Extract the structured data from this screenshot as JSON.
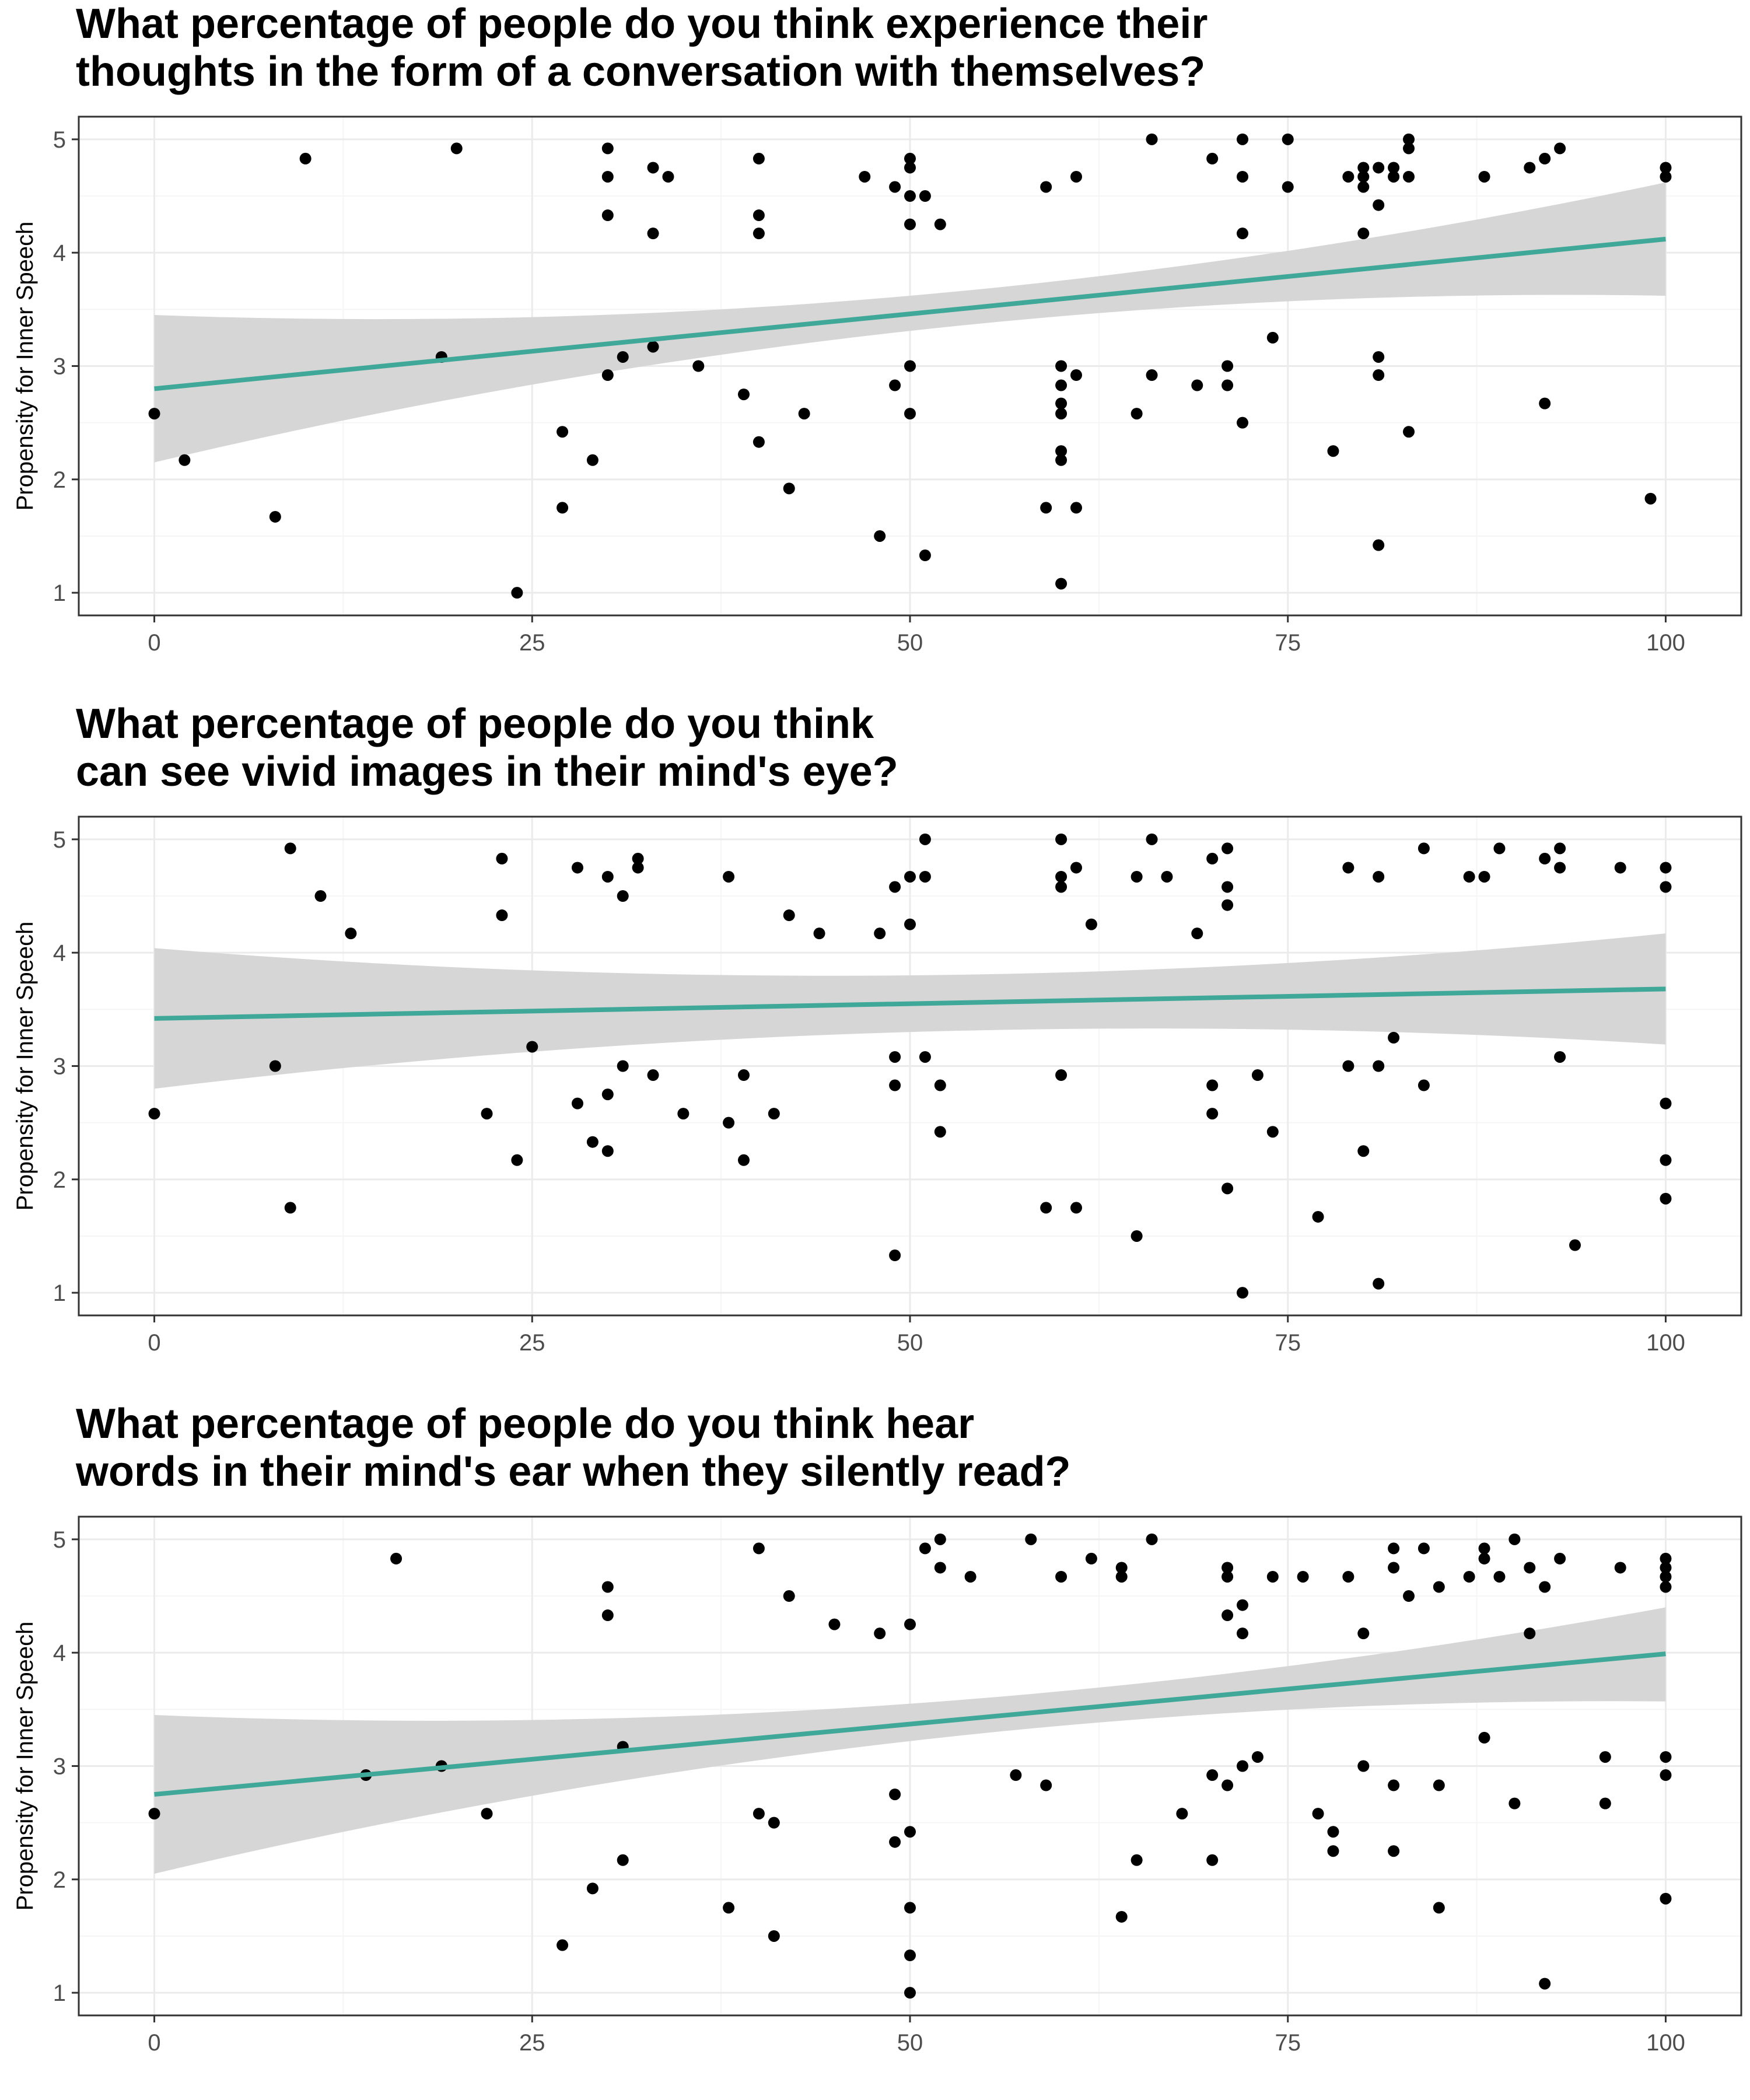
{
  "colors": {
    "background": "#ffffff",
    "grid_major": "#ebebeb",
    "grid_minor": "#f5f5f5",
    "panel_border": "#333333",
    "points": "#000000",
    "fit_line": "#3fa898",
    "ci_band": "#d6d6d6",
    "tick_text": "#4d4d4d"
  },
  "chart_data": [
    {
      "type": "scatter",
      "title_lines": [
        "What percentage of people do you think experience their",
        "thoughts in the form of a conversation with themselves?"
      ],
      "xlabel": "",
      "ylabel": "Propensity for Inner Speech",
      "xlim": [
        -5,
        105
      ],
      "ylim": [
        0.8,
        5.2
      ],
      "x_ticks": [
        0,
        25,
        50,
        75,
        100
      ],
      "y_ticks": [
        1,
        2,
        3,
        4,
        5
      ],
      "grid": true,
      "fit": {
        "method": "linear",
        "y_at_xmin": 2.8,
        "y_at_xmax": 4.12,
        "ci_lower": [
          2.15,
          3.62
        ],
        "ci_upper": [
          3.45,
          4.62
        ],
        "ci_mid": [
          3.31,
          3.62
        ]
      },
      "points": [
        [
          0,
          2.58
        ],
        [
          2,
          2.17
        ],
        [
          8,
          1.67
        ],
        [
          10,
          4.83
        ],
        [
          19,
          3.08
        ],
        [
          20,
          4.92
        ],
        [
          24,
          1.0
        ],
        [
          27,
          2.42
        ],
        [
          27,
          1.75
        ],
        [
          29,
          2.17
        ],
        [
          30,
          4.92
        ],
        [
          30,
          4.67
        ],
        [
          30,
          4.33
        ],
        [
          30,
          2.92
        ],
        [
          31,
          3.08
        ],
        [
          33,
          4.75
        ],
        [
          33,
          4.17
        ],
        [
          33,
          3.17
        ],
        [
          34,
          4.67
        ],
        [
          36,
          3.0
        ],
        [
          39,
          2.75
        ],
        [
          40,
          4.83
        ],
        [
          40,
          4.33
        ],
        [
          40,
          4.17
        ],
        [
          40,
          2.33
        ],
        [
          42,
          1.92
        ],
        [
          43,
          2.58
        ],
        [
          47,
          4.67
        ],
        [
          48,
          1.5
        ],
        [
          49,
          4.58
        ],
        [
          49,
          2.83
        ],
        [
          50,
          4.83
        ],
        [
          50,
          4.75
        ],
        [
          50,
          4.5
        ],
        [
          50,
          4.25
        ],
        [
          50,
          3.0
        ],
        [
          50,
          2.58
        ],
        [
          51,
          4.5
        ],
        [
          51,
          1.33
        ],
        [
          52,
          4.25
        ],
        [
          59,
          4.58
        ],
        [
          59,
          1.75
        ],
        [
          60,
          3.0
        ],
        [
          60,
          2.83
        ],
        [
          60,
          2.67
        ],
        [
          60,
          2.58
        ],
        [
          60,
          2.25
        ],
        [
          60,
          2.17
        ],
        [
          60,
          1.08
        ],
        [
          61,
          4.67
        ],
        [
          61,
          2.92
        ],
        [
          61,
          1.75
        ],
        [
          65,
          2.58
        ],
        [
          66,
          5.0
        ],
        [
          66,
          2.92
        ],
        [
          69,
          2.83
        ],
        [
          70,
          4.83
        ],
        [
          71,
          3.0
        ],
        [
          71,
          2.83
        ],
        [
          72,
          5.0
        ],
        [
          72,
          4.67
        ],
        [
          72,
          4.17
        ],
        [
          72,
          2.5
        ],
        [
          74,
          3.25
        ],
        [
          75,
          5.0
        ],
        [
          75,
          4.58
        ],
        [
          78,
          2.25
        ],
        [
          79,
          4.67
        ],
        [
          80,
          4.75
        ],
        [
          80,
          4.67
        ],
        [
          80,
          4.58
        ],
        [
          80,
          4.17
        ],
        [
          81,
          4.75
        ],
        [
          81,
          4.42
        ],
        [
          81,
          3.08
        ],
        [
          81,
          2.92
        ],
        [
          81,
          1.42
        ],
        [
          82,
          4.75
        ],
        [
          82,
          4.67
        ],
        [
          83,
          5.0
        ],
        [
          83,
          4.92
        ],
        [
          83,
          4.67
        ],
        [
          83,
          2.42
        ],
        [
          88,
          4.67
        ],
        [
          91,
          4.75
        ],
        [
          92,
          4.83
        ],
        [
          92,
          2.67
        ],
        [
          93,
          4.92
        ],
        [
          99,
          1.83
        ],
        [
          100,
          4.75
        ],
        [
          100,
          4.67
        ]
      ]
    },
    {
      "type": "scatter",
      "title_lines": [
        "What percentage of people do you think",
        "can see vivid images in their mind's eye?"
      ],
      "xlabel": "",
      "ylabel": "Propensity for Inner Speech",
      "xlim": [
        -5,
        105
      ],
      "ylim": [
        0.8,
        5.2
      ],
      "x_ticks": [
        0,
        25,
        50,
        75,
        100
      ],
      "y_ticks": [
        1,
        2,
        3,
        4,
        5
      ],
      "grid": true,
      "fit": {
        "method": "linear",
        "y_at_xmin": 3.42,
        "y_at_xmax": 3.68,
        "ci_lower": [
          2.8,
          3.19
        ],
        "ci_upper": [
          4.04,
          4.17
        ],
        "ci_mid": [
          3.3,
          3.8
        ]
      },
      "points": [
        [
          0,
          2.58
        ],
        [
          8,
          3.0
        ],
        [
          9,
          4.92
        ],
        [
          9,
          1.75
        ],
        [
          11,
          4.5
        ],
        [
          13,
          4.17
        ],
        [
          22,
          2.58
        ],
        [
          23,
          4.83
        ],
        [
          23,
          4.33
        ],
        [
          24,
          2.17
        ],
        [
          25,
          3.17
        ],
        [
          28,
          4.75
        ],
        [
          28,
          2.67
        ],
        [
          29,
          2.33
        ],
        [
          30,
          4.67
        ],
        [
          30,
          2.75
        ],
        [
          30,
          2.25
        ],
        [
          31,
          4.5
        ],
        [
          31,
          3.0
        ],
        [
          32,
          4.83
        ],
        [
          32,
          4.75
        ],
        [
          33,
          2.92
        ],
        [
          35,
          2.58
        ],
        [
          38,
          4.67
        ],
        [
          38,
          2.5
        ],
        [
          39,
          2.92
        ],
        [
          39,
          2.17
        ],
        [
          41,
          2.58
        ],
        [
          42,
          4.33
        ],
        [
          44,
          4.17
        ],
        [
          48,
          4.17
        ],
        [
          49,
          4.58
        ],
        [
          49,
          3.08
        ],
        [
          49,
          2.83
        ],
        [
          49,
          1.33
        ],
        [
          50,
          4.67
        ],
        [
          50,
          4.25
        ],
        [
          51,
          5.0
        ],
        [
          51,
          4.67
        ],
        [
          51,
          3.08
        ],
        [
          52,
          2.83
        ],
        [
          52,
          2.42
        ],
        [
          59,
          1.75
        ],
        [
          60,
          5.0
        ],
        [
          60,
          4.67
        ],
        [
          60,
          4.58
        ],
        [
          60,
          2.92
        ],
        [
          61,
          4.75
        ],
        [
          61,
          1.75
        ],
        [
          62,
          4.25
        ],
        [
          65,
          4.67
        ],
        [
          65,
          1.5
        ],
        [
          66,
          5.0
        ],
        [
          67,
          4.67
        ],
        [
          69,
          4.17
        ],
        [
          70,
          4.83
        ],
        [
          70,
          2.83
        ],
        [
          70,
          2.58
        ],
        [
          71,
          4.92
        ],
        [
          71,
          4.58
        ],
        [
          71,
          4.42
        ],
        [
          71,
          1.92
        ],
        [
          72,
          1.0
        ],
        [
          73,
          2.92
        ],
        [
          74,
          2.42
        ],
        [
          77,
          1.67
        ],
        [
          79,
          4.75
        ],
        [
          79,
          3.0
        ],
        [
          80,
          2.25
        ],
        [
          81,
          4.67
        ],
        [
          81,
          3.0
        ],
        [
          81,
          1.08
        ],
        [
          82,
          3.25
        ],
        [
          84,
          4.92
        ],
        [
          84,
          2.83
        ],
        [
          87,
          4.67
        ],
        [
          88,
          4.67
        ],
        [
          89,
          4.92
        ],
        [
          92,
          4.83
        ],
        [
          93,
          4.92
        ],
        [
          93,
          4.75
        ],
        [
          93,
          3.08
        ],
        [
          94,
          1.42
        ],
        [
          97,
          4.75
        ],
        [
          100,
          4.75
        ],
        [
          100,
          4.58
        ],
        [
          100,
          2.67
        ],
        [
          100,
          2.17
        ],
        [
          100,
          1.83
        ]
      ]
    },
    {
      "type": "scatter",
      "title_lines": [
        "What percentage of people do you think hear",
        "words in their mind's ear when they silently read?"
      ],
      "xlabel": "",
      "ylabel": "Propensity for Inner Speech",
      "xlim": [
        -5,
        105
      ],
      "ylim": [
        0.8,
        5.2
      ],
      "x_ticks": [
        0,
        25,
        50,
        75,
        100
      ],
      "y_ticks": [
        1,
        2,
        3,
        4,
        5
      ],
      "grid": true,
      "fit": {
        "method": "linear",
        "y_at_xmin": 2.75,
        "y_at_xmax": 3.99,
        "ci_lower": [
          2.05,
          3.57
        ],
        "ci_upper": [
          3.45,
          4.4
        ],
        "ci_mid": [
          3.22,
          3.55
        ]
      },
      "points": [
        [
          0,
          2.58
        ],
        [
          14,
          2.92
        ],
        [
          16,
          4.83
        ],
        [
          19,
          3.0
        ],
        [
          22,
          2.58
        ],
        [
          27,
          1.42
        ],
        [
          29,
          1.92
        ],
        [
          30,
          4.58
        ],
        [
          30,
          4.33
        ],
        [
          31,
          3.17
        ],
        [
          31,
          2.17
        ],
        [
          38,
          1.75
        ],
        [
          40,
          4.92
        ],
        [
          40,
          2.58
        ],
        [
          41,
          2.5
        ],
        [
          41,
          1.5
        ],
        [
          42,
          4.5
        ],
        [
          45,
          4.25
        ],
        [
          48,
          4.17
        ],
        [
          49,
          2.75
        ],
        [
          49,
          2.33
        ],
        [
          50,
          4.25
        ],
        [
          50,
          2.42
        ],
        [
          50,
          1.75
        ],
        [
          50,
          1.33
        ],
        [
          50,
          1.0
        ],
        [
          51,
          4.92
        ],
        [
          52,
          5.0
        ],
        [
          52,
          4.75
        ],
        [
          54,
          4.67
        ],
        [
          57,
          2.92
        ],
        [
          58,
          5.0
        ],
        [
          59,
          2.83
        ],
        [
          60,
          4.67
        ],
        [
          62,
          4.83
        ],
        [
          64,
          4.75
        ],
        [
          64,
          4.67
        ],
        [
          64,
          1.67
        ],
        [
          65,
          2.17
        ],
        [
          66,
          5.0
        ],
        [
          68,
          2.58
        ],
        [
          70,
          2.92
        ],
        [
          70,
          2.17
        ],
        [
          71,
          4.75
        ],
        [
          71,
          4.67
        ],
        [
          71,
          4.33
        ],
        [
          71,
          2.83
        ],
        [
          72,
          4.42
        ],
        [
          72,
          4.17
        ],
        [
          72,
          3.0
        ],
        [
          73,
          3.08
        ],
        [
          74,
          4.67
        ],
        [
          76,
          4.67
        ],
        [
          77,
          2.58
        ],
        [
          78,
          2.42
        ],
        [
          78,
          2.25
        ],
        [
          79,
          4.67
        ],
        [
          80,
          4.17
        ],
        [
          80,
          3.0
        ],
        [
          82,
          4.92
        ],
        [
          82,
          4.75
        ],
        [
          82,
          2.83
        ],
        [
          82,
          2.25
        ],
        [
          83,
          4.5
        ],
        [
          84,
          4.92
        ],
        [
          85,
          4.58
        ],
        [
          85,
          2.83
        ],
        [
          85,
          1.75
        ],
        [
          87,
          4.67
        ],
        [
          88,
          4.92
        ],
        [
          88,
          4.83
        ],
        [
          88,
          3.25
        ],
        [
          89,
          4.67
        ],
        [
          90,
          5.0
        ],
        [
          90,
          2.67
        ],
        [
          91,
          4.75
        ],
        [
          91,
          4.17
        ],
        [
          92,
          4.58
        ],
        [
          92,
          1.08
        ],
        [
          93,
          4.83
        ],
        [
          96,
          3.08
        ],
        [
          96,
          2.67
        ],
        [
          97,
          4.75
        ],
        [
          100,
          4.83
        ],
        [
          100,
          4.75
        ],
        [
          100,
          4.67
        ],
        [
          100,
          4.58
        ],
        [
          100,
          3.08
        ],
        [
          100,
          2.92
        ],
        [
          100,
          1.83
        ]
      ]
    }
  ]
}
